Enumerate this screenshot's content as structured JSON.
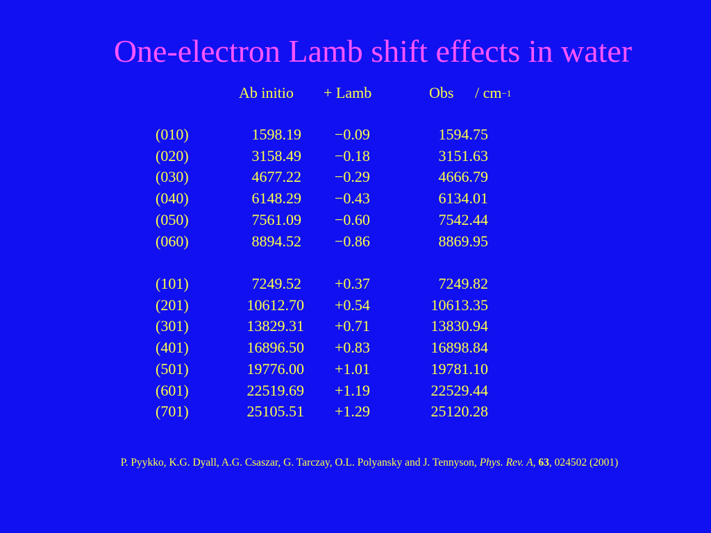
{
  "title": "One-electron Lamb shift effects in water",
  "header": {
    "ab_initio": "Ab initio",
    "lamb": "+ Lamb",
    "obs": "Obs",
    "unit": "/ cm",
    "unit_exponent": "−1"
  },
  "rows_bending": [
    {
      "state": "(010)",
      "ab_initio": "1598.19",
      "lamb": "−0.09",
      "obs": "1594.75"
    },
    {
      "state": "(020)",
      "ab_initio": "3158.49",
      "lamb": "−0.18",
      "obs": "3151.63"
    },
    {
      "state": "(030)",
      "ab_initio": "4677.22",
      "lamb": "−0.29",
      "obs": "4666.79"
    },
    {
      "state": "(040)",
      "ab_initio": "6148.29",
      "lamb": "−0.43",
      "obs": "6134.01"
    },
    {
      "state": "(050)",
      "ab_initio": "7561.09",
      "lamb": "−0.60",
      "obs": "7542.44"
    },
    {
      "state": "(060)",
      "ab_initio": "8894.52",
      "lamb": "−0.86",
      "obs": "8869.95"
    }
  ],
  "rows_stretching": [
    {
      "state": "(101)",
      "ab_initio": "7249.52",
      "lamb": "+0.37",
      "obs": "7249.82"
    },
    {
      "state": "(201)",
      "ab_initio": "10612.70",
      "lamb": "+0.54",
      "obs": "10613.35"
    },
    {
      "state": "(301)",
      "ab_initio": "13829.31",
      "lamb": "+0.71",
      "obs": "13830.94"
    },
    {
      "state": "(401)",
      "ab_initio": "16896.50",
      "lamb": "+0.83",
      "obs": "16898.84"
    },
    {
      "state": "(501)",
      "ab_initio": "19776.00",
      "lamb": "+1.01",
      "obs": "19781.10"
    },
    {
      "state": "(601)",
      "ab_initio": "22519.69",
      "lamb": "+1.19",
      "obs": "22529.44"
    },
    {
      "state": "(701)",
      "ab_initio": "25105.51",
      "lamb": "+1.29",
      "obs": "25120.28"
    }
  ],
  "reference": {
    "authors": "P. Pyykko, K.G. Dyall, A.G. Csaszar, G. Tarczay, O.L. Polyansky  and   J. Tennyson, ",
    "journal": "Phys. Rev. A",
    "sep1": ", ",
    "volume": "63",
    "rest": ", 024502 (2001)"
  },
  "colors": {
    "background": "#1010f0",
    "title": "#ff55ff",
    "text": "#ffff4a"
  }
}
